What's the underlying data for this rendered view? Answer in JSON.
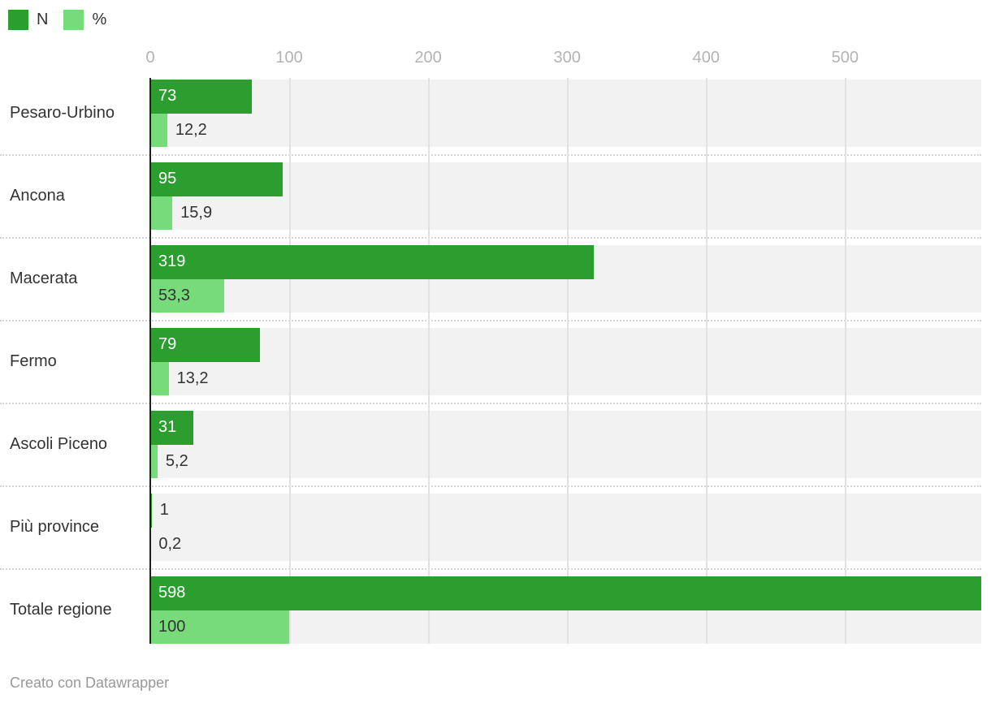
{
  "legend": {
    "items": [
      {
        "label": "N",
        "color": "#2b9e2f"
      },
      {
        "label": "%",
        "color": "#77db7a"
      }
    ]
  },
  "axis": {
    "tick_labels": [
      "0",
      "100",
      "200",
      "300",
      "400",
      "500"
    ],
    "tick_values": [
      0,
      100,
      200,
      300,
      400,
      500
    ],
    "max_value": 598
  },
  "chart_data": {
    "type": "bar",
    "orientation": "horizontal",
    "title": "",
    "categories": [
      "Pesaro-Urbino",
      "Ancona",
      "Macerata",
      "Fermo",
      "Ascoli Piceno",
      "Più province",
      "Totale regione"
    ],
    "series": [
      {
        "name": "N",
        "color": "#2b9e2f",
        "values": [
          73,
          95,
          319,
          79,
          31,
          1,
          598
        ],
        "labels": [
          "73",
          "95",
          "319",
          "79",
          "31",
          "1",
          "598"
        ]
      },
      {
        "name": "%",
        "color": "#77db7a",
        "values": [
          12.2,
          15.9,
          53.3,
          13.2,
          5.2,
          0.2,
          100
        ],
        "labels": [
          "12,2",
          "15,9",
          "53,3",
          "13,2",
          "5,2",
          "0,2",
          "100"
        ]
      }
    ],
    "xlim": [
      0,
      598
    ],
    "grid": true,
    "legend_position": "top-left"
  },
  "footer": {
    "attribution": "Creato con Datawrapper"
  },
  "colors": {
    "series_n": "#2b9e2f",
    "series_pct": "#77db7a",
    "row_band": "#f2f2f2",
    "gridline": "#e2e2e2",
    "axis_line": "#1f1f1f",
    "tick_label": "#b3b3b3",
    "category_label": "#333333",
    "value_label_dark": "#333333",
    "value_label_light": "#ffffff",
    "separator": "#d4d4d4",
    "attribution": "#999999"
  }
}
